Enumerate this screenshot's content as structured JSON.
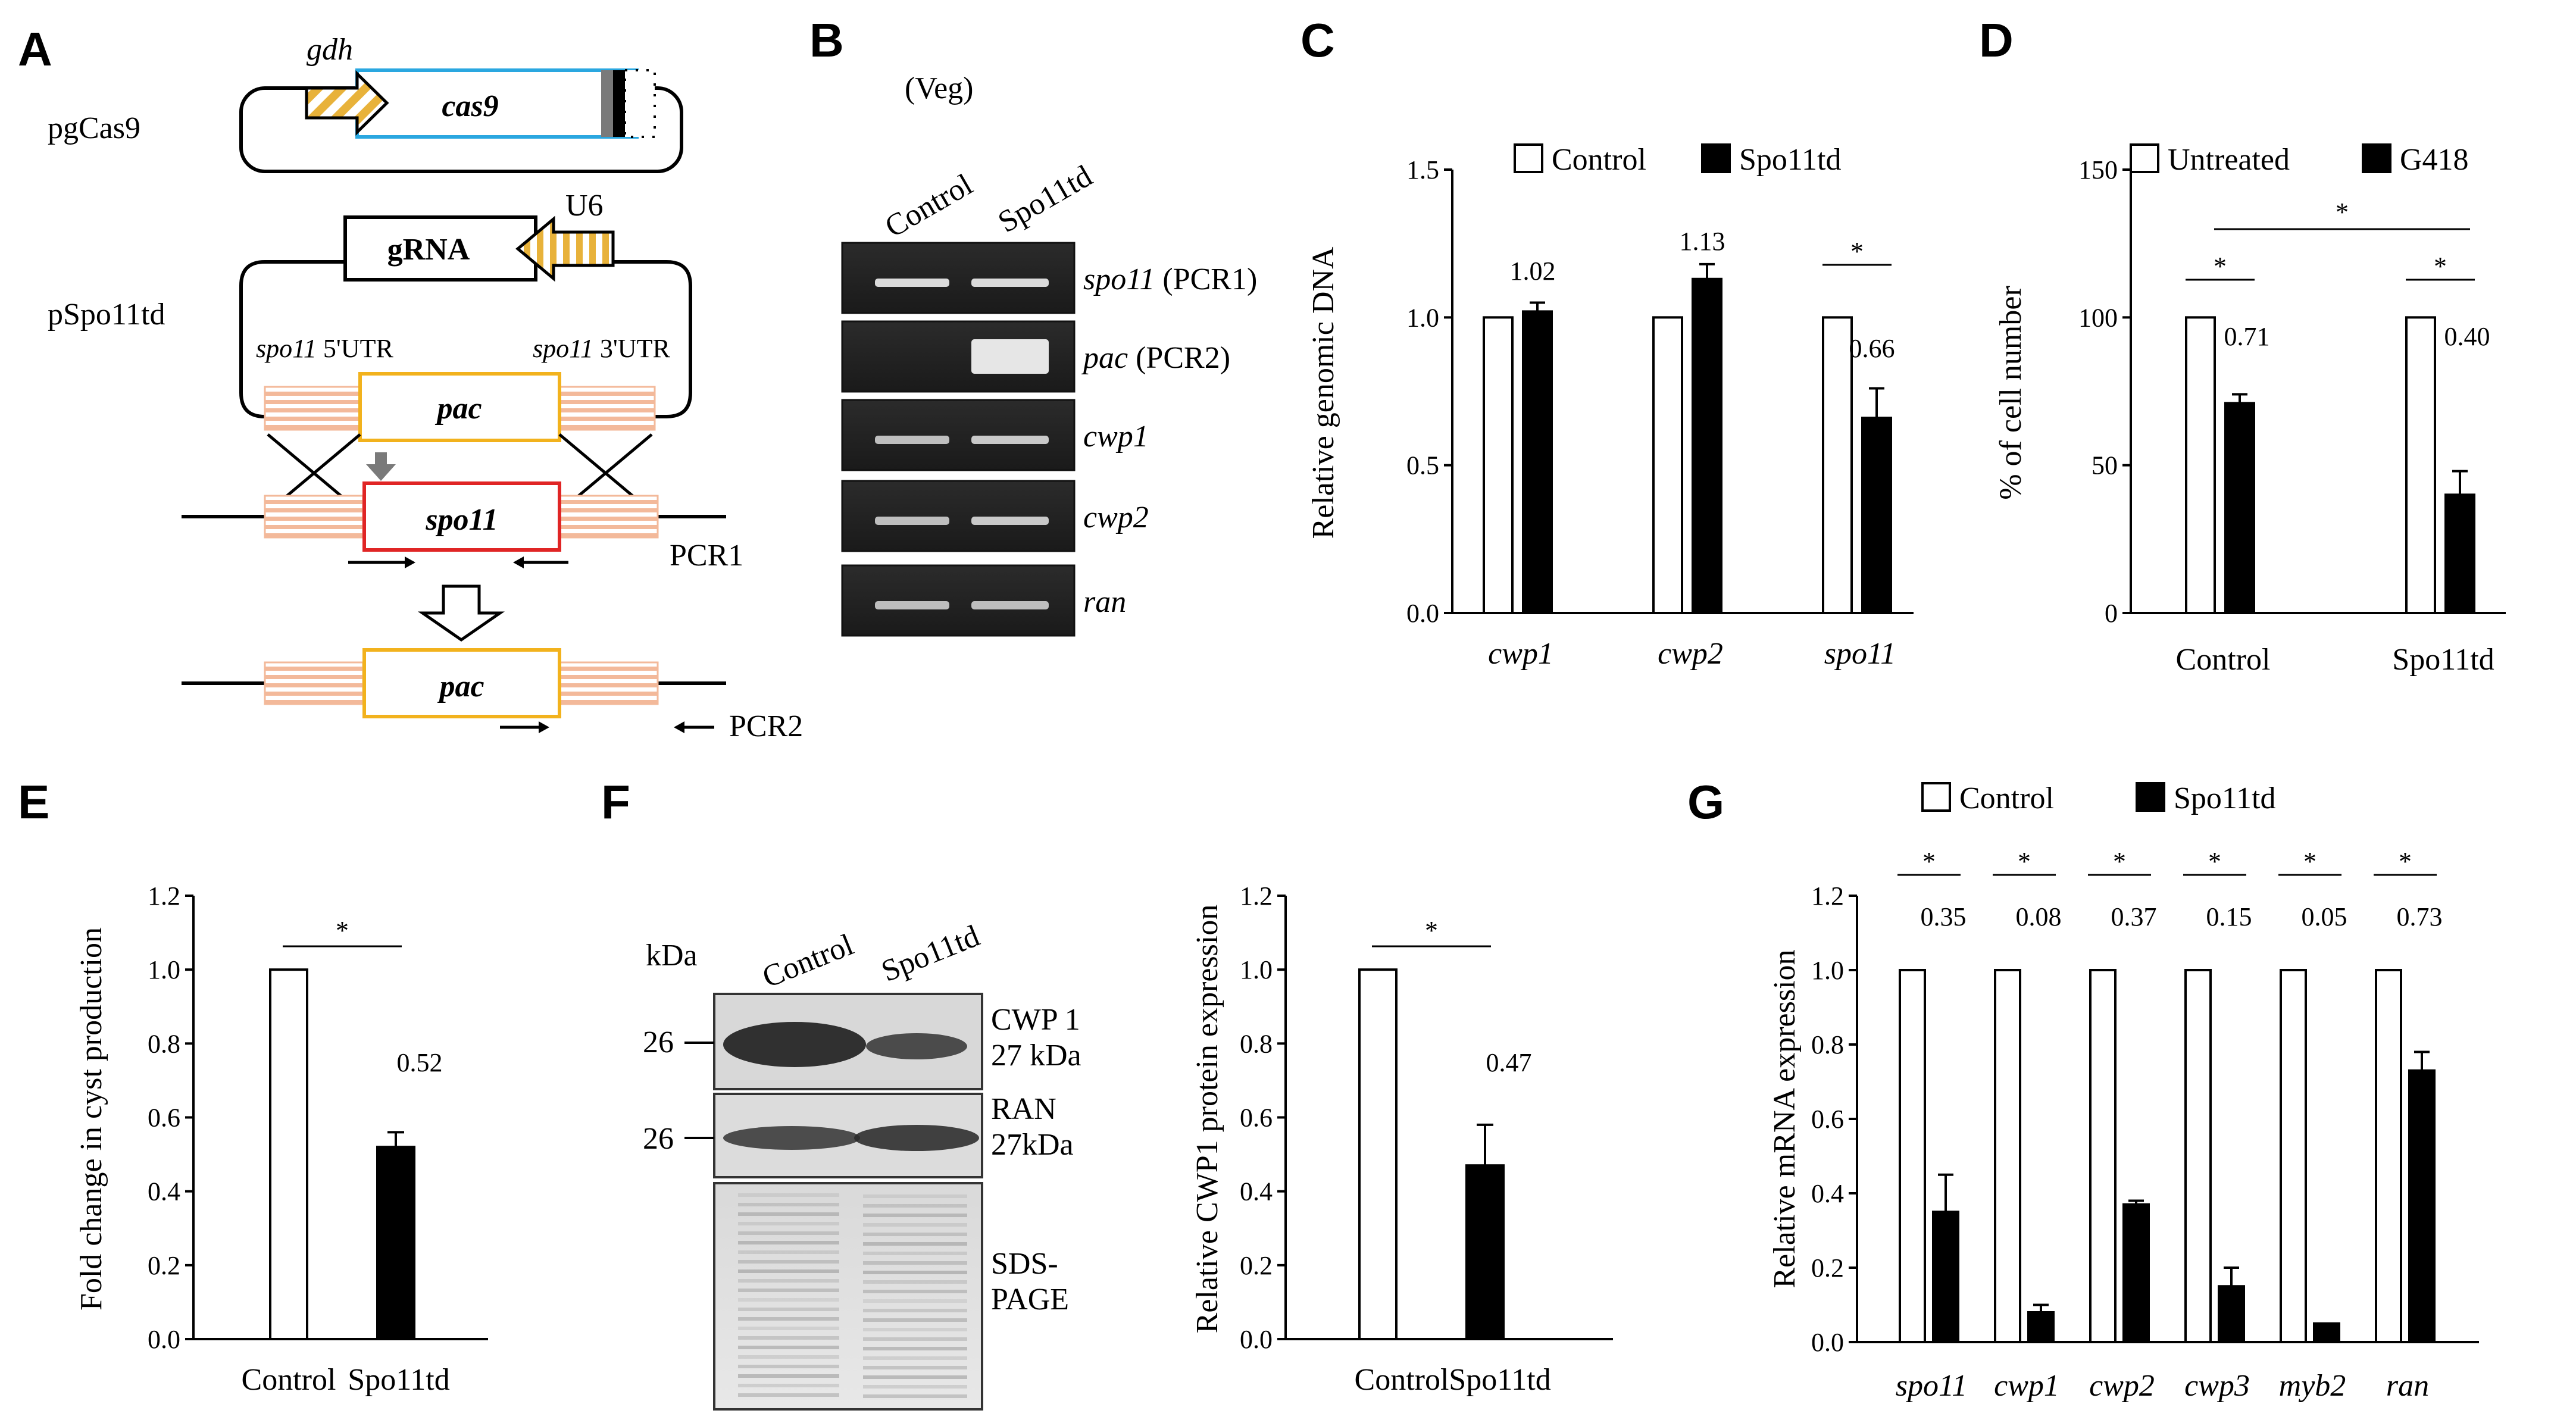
{
  "panels": {
    "A": {
      "letter": "A",
      "pgcas9": "pgCas9",
      "gdh": "gdh",
      "cas9": "cas9",
      "gRNA": "gRNA",
      "U6": "U6",
      "pspo11td": "pSpo11td",
      "utr5_gene": "spo11",
      "utr5": " 5'UTR",
      "utr3_gene": "spo11",
      "utr3": " 3'UTR",
      "pac": "pac",
      "spo11": "spo11",
      "pcr1": "PCR1",
      "pac2": "pac",
      "pcr2": "PCR2"
    },
    "B": {
      "letter": "B",
      "veg": "(Veg)",
      "lanes": [
        "Control",
        "Spo11td"
      ],
      "rows": [
        {
          "gene": "spo11",
          "suffix": " (PCR1)"
        },
        {
          "gene": "pac",
          "suffix": " (PCR2)"
        },
        {
          "gene": "cwp1",
          "suffix": ""
        },
        {
          "gene": "cwp2",
          "suffix": ""
        },
        {
          "gene": "ran",
          "suffix": ""
        }
      ]
    },
    "C": {
      "letter": "C"
    },
    "D": {
      "letter": "D"
    },
    "E": {
      "letter": "E"
    },
    "F": {
      "letter": "F",
      "kda": "kDa",
      "marker1": "26",
      "marker2": "26",
      "lanes": [
        "Control",
        "Spo11td"
      ],
      "cwp1_line1": "CWP 1",
      "cwp1_line2": "27 kDa",
      "ran_line1": "RAN",
      "ran_line2": "27kDa",
      "sds_line1": "SDS-",
      "sds_line2": "PAGE"
    },
    "G": {
      "letter": "G"
    }
  },
  "chart_data": [
    {
      "id": "C",
      "type": "bar",
      "ylabel": "Relative genomic DNA",
      "ylim": [
        0,
        1.5
      ],
      "yticks": [
        "0.0",
        "0.5",
        "1.0",
        "1.5"
      ],
      "categories": [
        "cwp1",
        "cwp2",
        "spo11"
      ],
      "series": [
        {
          "name": "Control",
          "values": [
            1.0,
            1.0,
            1.0
          ],
          "errors": [
            0,
            0,
            0
          ]
        },
        {
          "name": "Spo11td",
          "values": [
            1.02,
            1.13,
            0.66
          ],
          "errors": [
            0.03,
            0.05,
            0.1
          ]
        }
      ],
      "annotations": [
        "1.02",
        "1.13",
        "0.66"
      ],
      "significance": [
        "",
        "",
        "*"
      ],
      "legend": "top"
    },
    {
      "id": "D",
      "type": "bar",
      "ylabel": "% of cell number",
      "ylim": [
        0,
        150
      ],
      "yticks": [
        "0",
        "50",
        "100",
        "150"
      ],
      "categories": [
        "Control",
        "Spo11td"
      ],
      "series": [
        {
          "name": "Untreated",
          "values": [
            100,
            100
          ],
          "errors": [
            0,
            0
          ]
        },
        {
          "name": "G418",
          "values": [
            71,
            40
          ],
          "errors": [
            3,
            8
          ]
        }
      ],
      "annotations": [
        "0.71",
        "0.40"
      ],
      "significance": [
        "*",
        "*"
      ],
      "between_significance": "*",
      "legend": "top"
    },
    {
      "id": "E",
      "type": "bar",
      "ylabel": "Fold change in cyst production",
      "ylim": [
        0,
        1.2
      ],
      "yticks": [
        "0.0",
        "0.2",
        "0.4",
        "0.6",
        "0.8",
        "1.0",
        "1.2"
      ],
      "categories": [
        "Control",
        "Spo11td"
      ],
      "values": [
        1.0,
        0.52
      ],
      "errors": [
        0,
        0.04
      ],
      "annotations": [
        "",
        "0.52"
      ],
      "significance": "*"
    },
    {
      "id": "F",
      "type": "bar",
      "ylabel": "Relative CWP1 protein expression",
      "ylim": [
        0,
        1.2
      ],
      "yticks": [
        "0.0",
        "0.2",
        "0.4",
        "0.6",
        "0.8",
        "1.0",
        "1.2"
      ],
      "categories": [
        "Control",
        "Spo11td"
      ],
      "values": [
        1.0,
        0.47
      ],
      "errors": [
        0,
        0.11
      ],
      "annotations": [
        "",
        "0.47"
      ],
      "significance": "*"
    },
    {
      "id": "G",
      "type": "bar",
      "ylabel": "Relative mRNA expression",
      "ylim": [
        0,
        1.2
      ],
      "yticks": [
        "0.0",
        "0.2",
        "0.4",
        "0.6",
        "0.8",
        "1.0",
        "1.2"
      ],
      "categories": [
        "spo11",
        "cwp1",
        "cwp2",
        "cwp3",
        "myb2",
        "ran"
      ],
      "series": [
        {
          "name": "Control",
          "values": [
            1,
            1,
            1,
            1,
            1,
            1
          ],
          "errors": [
            0,
            0,
            0,
            0,
            0,
            0
          ]
        },
        {
          "name": "Spo11td",
          "values": [
            0.35,
            0.08,
            0.37,
            0.15,
            0.05,
            0.73
          ],
          "errors": [
            0.1,
            0.02,
            0.01,
            0.05,
            0,
            0.05
          ]
        }
      ],
      "annotations": [
        "0.35",
        "0.08",
        "0.37",
        "0.15",
        "0.05",
        "0.73"
      ],
      "significance": [
        "*",
        "*",
        "*",
        "*",
        "*",
        "*"
      ],
      "legend": "top"
    }
  ]
}
